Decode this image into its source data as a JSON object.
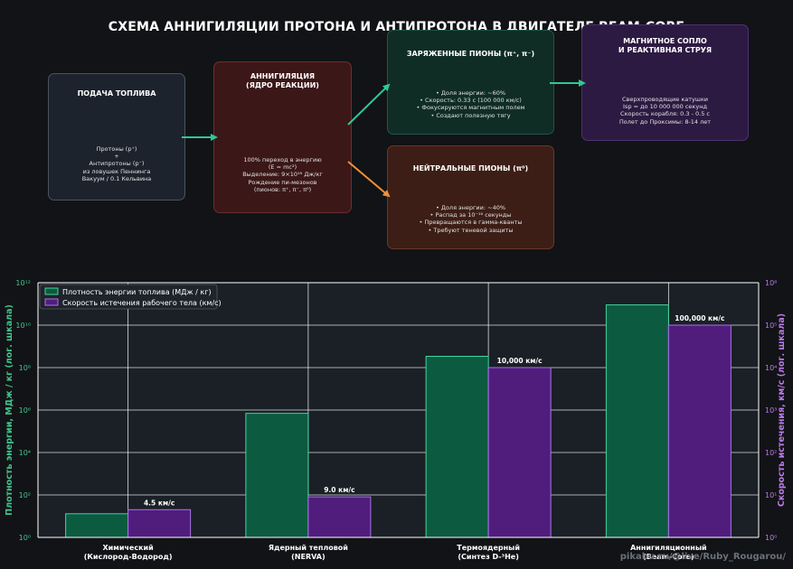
{
  "title": "СХЕМА АННИГИЛЯЦИИ ПРОТОНА И АНТИПРОТОНА В ДВИГАТЕЛЕ BEAM-CORE",
  "boxes": {
    "fuel": {
      "title": "ПОДАЧА ТОПЛИВА",
      "body": "Протоны (p⁺)\n+\nАнтипротоны (p⁻)\nиз ловушек Пеннинга\nВакуум / 0.1 Кельвина"
    },
    "annihilation": {
      "title": "АННИГИЛЯЦИЯ\n(ЯДРО РЕАКЦИИ)",
      "body": "100% переход в энергию\n(E = mc²)\nВыделение: 9×10¹⁶ Дж/кг\nРождение пи-мезонов\n(пионов: π⁺, π⁻, π⁰)"
    },
    "charged": {
      "title": "ЗАРЯЖЕННЫЕ ПИОНЫ (π⁺, π⁻)",
      "body": "• Доля энергии: ~60%\n• Скорость: 0.33 с (100 000 км/с)\n• Фокусируются магнитным полем\n• Создают полезную тягу"
    },
    "neutral": {
      "title": "НЕЙТРАЛЬНЫЕ ПИОНЫ (π⁰)",
      "body": "• Доля энергии: ~40%\n• Распад за 10⁻¹⁶ секунды\n• Превращаются в гамма-кванты\n• Требуют теневой защиты"
    },
    "nozzle": {
      "title": "МАГНИТНОЕ СОПЛО\nИ РЕАКТИВНАЯ СТРУЯ",
      "body": "Сверхпроводящие катушки\nIsp = до 10 000 000 секунд\nСкорость корабля: 0.3 - 0.5 с\nПолет до Проксимы: 8-14 лет"
    }
  },
  "colors": {
    "arrow_main": "#2ec995",
    "arrow_neutral": "#f0913a",
    "energy_bar": "#0c5a40",
    "energy_edge": "#3fd69d",
    "velocity_bar": "#501d7d",
    "velocity_edge": "#a873e6",
    "left_axis": "#3fc48d",
    "right_axis": "#b97ae8"
  },
  "chart_data": {
    "type": "bar",
    "categories": [
      "Химический\n(Кислород-Водород)",
      "Ядерный тепловой\n(NERVA)",
      "Термоядерный\n(Синтез D-³He)",
      "Аннигиляционный\n(Beam-Core)"
    ],
    "series": [
      {
        "name": "Плотность энергии топлива (МДж / кг)",
        "axis": "left",
        "values": [
          13,
          700000,
          340000000,
          90000000000
        ]
      },
      {
        "name": "Скорость истечения рабочего тела (км/с)",
        "axis": "right",
        "values": [
          4.5,
          9.0,
          10000,
          100000
        ]
      }
    ],
    "data_labels": [
      "4.5 км/с",
      "9.0 км/с",
      "10,000 км/с",
      "100,000 км/с"
    ],
    "ylabel_left": "Плотность энергии, МДж / кг (лог. шкала)",
    "ylabel_right": "Скорость истечения, км/с (лог. шкала)",
    "yscale": "log",
    "ylim_left": [
      1,
      1000000000000
    ],
    "ylim_right": [
      1,
      1000000
    ],
    "left_ticks": [
      "10⁰",
      "10²",
      "10⁴",
      "10⁶",
      "10⁸",
      "10¹⁰",
      "10¹²"
    ],
    "right_ticks": [
      "10⁰",
      "10¹",
      "10²",
      "10³",
      "10⁴",
      "10⁵",
      "10⁶"
    ],
    "grid": true,
    "legend_position": "top-left"
  },
  "watermark": "pikabu.ru/@live/Ruby_Rougarou/"
}
